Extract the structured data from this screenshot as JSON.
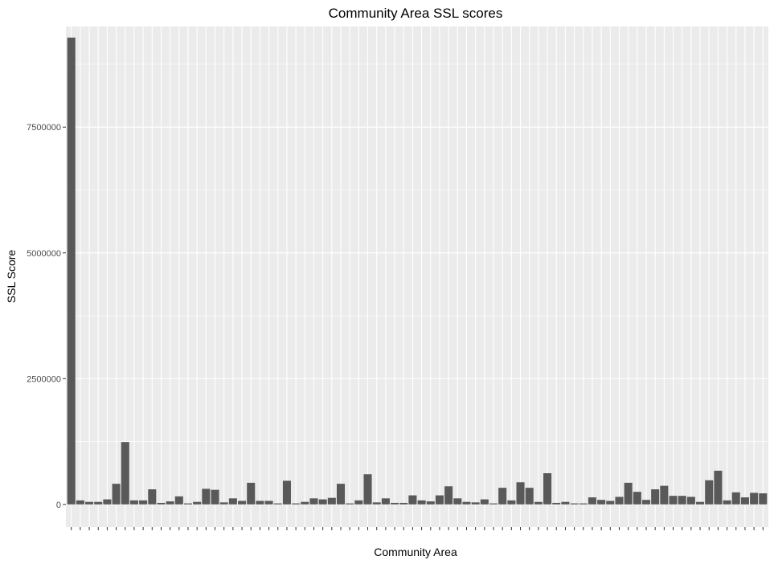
{
  "chart_data": {
    "type": "bar",
    "title": "Community Area SSL scores",
    "xlabel": "Community Area",
    "ylabel": "SSL Score",
    "ylim": [
      -450000,
      9500000
    ],
    "yticks": [
      0,
      2500000,
      5000000,
      7500000
    ],
    "ytick_labels": [
      "0",
      "2500000",
      "5000000",
      "7500000"
    ],
    "grid": true,
    "colors": {
      "panel": "#ebebeb",
      "grid": "#ffffff",
      "bar": "#595959",
      "text": "#4d4d4d"
    },
    "values": [
      9280000,
      80000,
      50000,
      50000,
      100000,
      410000,
      1240000,
      80000,
      80000,
      300000,
      30000,
      60000,
      160000,
      20000,
      50000,
      310000,
      290000,
      40000,
      120000,
      70000,
      430000,
      70000,
      70000,
      20000,
      470000,
      20000,
      50000,
      120000,
      100000,
      130000,
      410000,
      20000,
      80000,
      600000,
      40000,
      120000,
      30000,
      30000,
      180000,
      80000,
      60000,
      180000,
      360000,
      120000,
      50000,
      40000,
      100000,
      20000,
      330000,
      80000,
      440000,
      330000,
      50000,
      620000,
      30000,
      50000,
      20000,
      20000,
      140000,
      90000,
      70000,
      150000,
      430000,
      250000,
      90000,
      300000,
      370000,
      170000,
      170000,
      150000,
      50000,
      480000,
      670000,
      80000,
      240000,
      140000,
      230000,
      220000
    ]
  }
}
